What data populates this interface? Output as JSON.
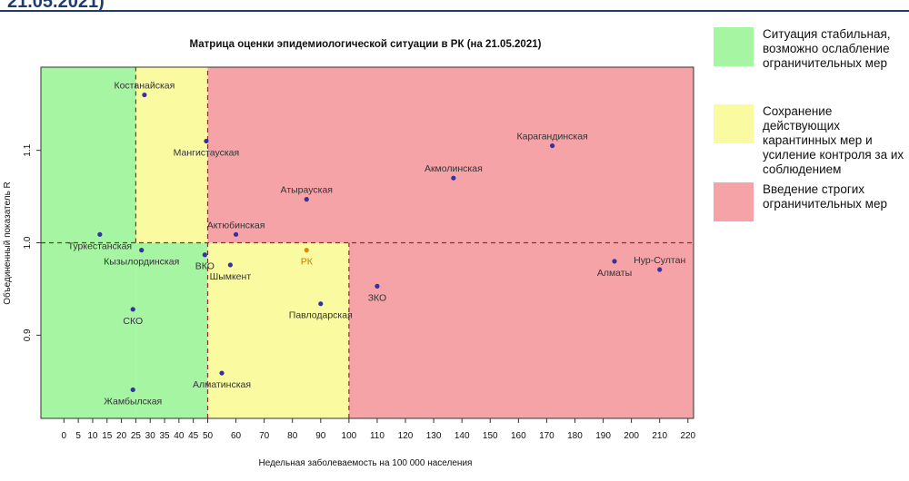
{
  "page": {
    "header_fragment": "21.05.2021)"
  },
  "legend": {
    "items": [
      {
        "color": "#a6f5a3",
        "text": "Ситуация стабильная, возможно ослабление ограничительных мер"
      },
      {
        "color": "#fafaa0",
        "text": "Сохранение действующих карантинных мер и усиление контроля за их соблюдением"
      },
      {
        "color": "#f6a3a7",
        "text": "Введение строгих ограничительных мер"
      }
    ]
  },
  "chart_data": {
    "type": "scatter",
    "title": "Матрица оценки эпидемиологической ситуации в РК (на 21.05.2021)",
    "xlabel": "Недельная заболеваемость на 100 000 населения",
    "ylabel": "Объединенный показатель R",
    "xlim": [
      -8,
      222
    ],
    "ylim": [
      0.81,
      1.19
    ],
    "x_ticks": [
      0,
      5,
      10,
      15,
      20,
      25,
      30,
      35,
      40,
      45,
      50,
      60,
      70,
      80,
      90,
      100,
      110,
      120,
      130,
      140,
      150,
      160,
      170,
      180,
      190,
      200,
      210,
      220
    ],
    "y_ticks": [
      0.9,
      1.0,
      1.1
    ],
    "zones": [
      {
        "x_from": -8,
        "x_to": 25,
        "y_from": 0.81,
        "y_to": 1.19,
        "color": "#a6f5a3"
      },
      {
        "x_from": 25,
        "x_to": 50,
        "y_from": 1.0,
        "y_to": 1.19,
        "color": "#fafaa0"
      },
      {
        "x_from": 25,
        "x_to": 50,
        "y_from": 0.81,
        "y_to": 1.0,
        "color": "#a6f5a3"
      },
      {
        "x_from": 50,
        "x_to": 100,
        "y_from": 0.81,
        "y_to": 1.0,
        "color": "#fafaa0"
      },
      {
        "x_from": 50,
        "x_to": 222,
        "y_from": 1.0,
        "y_to": 1.19,
        "color": "#f6a3a7"
      },
      {
        "x_from": 100,
        "x_to": 222,
        "y_from": 0.81,
        "y_to": 1.0,
        "color": "#f6a3a7"
      }
    ],
    "reference_lines": [
      {
        "orientation": "vertical",
        "x": 25,
        "y_from": 1.0,
        "y_to": 1.19,
        "color": "#8b2d2d"
      },
      {
        "orientation": "vertical",
        "x": 50,
        "y_from": 0.81,
        "y_to": 1.19,
        "color": "#8b2d2d"
      },
      {
        "orientation": "vertical",
        "x": 100,
        "y_from": 0.81,
        "y_to": 1.0,
        "color": "#8b2d2d"
      },
      {
        "orientation": "horizontal",
        "y": 1.0,
        "x_from": -8,
        "x_to": 222,
        "color": "#8b2d2d"
      }
    ],
    "points": [
      {
        "label": "Костанайская",
        "x": 28,
        "y": 1.16,
        "label_pos": "above",
        "color": "#3730a0"
      },
      {
        "label": "Мангистауская",
        "x": 49.5,
        "y": 1.11,
        "label_pos": "below",
        "color": "#3730a0"
      },
      {
        "label": "Карагандинская",
        "x": 172,
        "y": 1.105,
        "label_pos": "above",
        "color": "#3730a0"
      },
      {
        "label": "Акмолинская",
        "x": 137,
        "y": 1.07,
        "label_pos": "above",
        "color": "#3730a0"
      },
      {
        "label": "Атырауская",
        "x": 85,
        "y": 1.047,
        "label_pos": "above",
        "color": "#3730a0"
      },
      {
        "label": "Актюбинская",
        "x": 60,
        "y": 1.009,
        "label_pos": "above",
        "color": "#3730a0"
      },
      {
        "label": "Туркестанская",
        "x": 12.5,
        "y": 1.009,
        "label_pos": "below",
        "color": "#3730a0"
      },
      {
        "label": "Кызылординская",
        "x": 27,
        "y": 0.992,
        "label_pos": "below",
        "color": "#3730a0"
      },
      {
        "label": "ВКО",
        "x": 49,
        "y": 0.987,
        "label_pos": "below",
        "color": "#3730a0"
      },
      {
        "label": "РК",
        "x": 85,
        "y": 0.992,
        "label_pos": "below",
        "color": "#e08a00"
      },
      {
        "label": "Шымкент",
        "x": 58,
        "y": 0.976,
        "label_pos": "below",
        "color": "#3730a0"
      },
      {
        "label": "ЗКО",
        "x": 110,
        "y": 0.953,
        "label_pos": "below",
        "color": "#3730a0"
      },
      {
        "label": "Павлодарская",
        "x": 90,
        "y": 0.934,
        "label_pos": "below",
        "color": "#3730a0"
      },
      {
        "label": "СКО",
        "x": 24,
        "y": 0.928,
        "label_pos": "below",
        "color": "#3730a0"
      },
      {
        "label": "Алматы",
        "x": 194,
        "y": 0.98,
        "label_pos": "below",
        "color": "#3730a0"
      },
      {
        "label": "Нур-Султан",
        "x": 210,
        "y": 0.971,
        "label_pos": "above",
        "color": "#3730a0"
      },
      {
        "label": "Алматинская",
        "x": 55,
        "y": 0.859,
        "label_pos": "below",
        "color": "#3730a0"
      },
      {
        "label": "Жамбылская",
        "x": 24,
        "y": 0.841,
        "label_pos": "below",
        "color": "#3730a0"
      }
    ]
  }
}
